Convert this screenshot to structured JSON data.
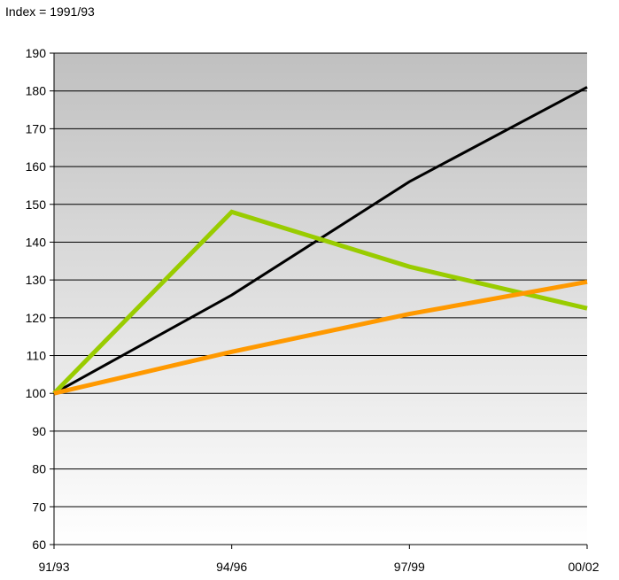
{
  "chart_data": {
    "type": "line",
    "unit_note": "Index = 1991/93",
    "title": "",
    "xlabel": "",
    "ylabel": "",
    "categories": [
      "91/93",
      "94/96",
      "97/99",
      "00/02"
    ],
    "ylim": [
      60,
      190
    ],
    "yticks": [
      60,
      70,
      80,
      90,
      100,
      110,
      120,
      130,
      140,
      150,
      160,
      170,
      180,
      190
    ],
    "grid": true,
    "legend": "none",
    "background": "vertical gradient from light grey (top) to white (bottom)",
    "series": [
      {
        "color": "#000000",
        "stroke": "thin",
        "values": [
          100,
          126,
          156,
          181
        ]
      },
      {
        "color": "#99cc00",
        "stroke": "thick",
        "values": [
          100,
          148,
          133.5,
          122.5
        ]
      },
      {
        "color": "#ff9900",
        "stroke": "thick",
        "values": [
          100,
          111,
          121,
          129.5
        ]
      }
    ]
  }
}
